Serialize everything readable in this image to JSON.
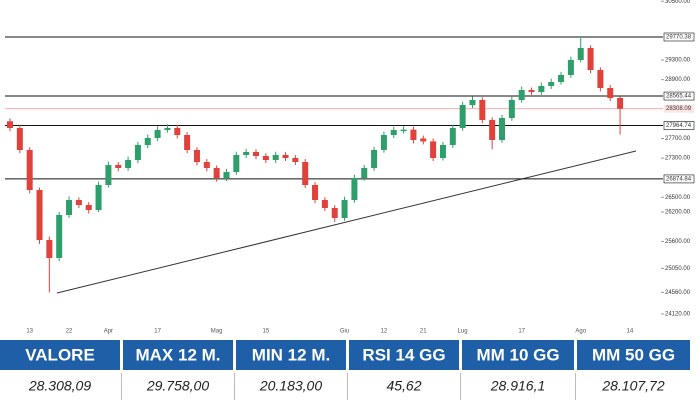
{
  "chart_data": {
    "type": "candlestick",
    "categories": [
      null,
      null,
      "13",
      null,
      null,
      null,
      "22",
      null,
      null,
      null,
      "Apr",
      null,
      null,
      null,
      null,
      "17",
      null,
      null,
      null,
      null,
      null,
      "Mag",
      null,
      null,
      null,
      null,
      "15",
      null,
      null,
      null,
      null,
      null,
      null,
      null,
      "Giu",
      null,
      null,
      null,
      "12",
      null,
      null,
      null,
      "21",
      null,
      null,
      null,
      "Lug",
      null,
      null,
      null,
      null,
      null,
      "17",
      null,
      null,
      null,
      null,
      null,
      "Ago",
      null,
      null,
      null,
      null,
      "14",
      null
    ],
    "open": [
      28050,
      27914,
      27465,
      26649,
      25629,
      25262,
      26139,
      26445,
      26343,
      26241,
      26751,
      27159,
      27098,
      27261,
      27567,
      27710,
      27873,
      27914,
      27771,
      27465,
      27220,
      27098,
      26893,
      27016,
      27363,
      27424,
      27343,
      27261,
      27363,
      27302,
      27220,
      26751,
      26445,
      26282,
      26078,
      26445,
      26893,
      27098,
      27465,
      27771,
      27850,
      27880,
      27700,
      27640,
      27302,
      27567,
      27914,
      28383,
      28485,
      28077,
      27669,
      28118,
      28485,
      28689,
      28648,
      28771,
      28852,
      28995,
      29301,
      29546,
      29097,
      28730,
      28526,
      null,
      null
    ],
    "high": [
      28110,
      27980,
      27520,
      26700,
      25700,
      26200,
      26520,
      26500,
      26400,
      26820,
      27230,
      27220,
      27330,
      27630,
      27780,
      27950,
      27990,
      27980,
      27830,
      27520,
      27280,
      27150,
      27080,
      27430,
      27490,
      27480,
      27400,
      27430,
      27420,
      27360,
      27280,
      26810,
      26500,
      26340,
      26510,
      26960,
      27160,
      27530,
      27840,
      27940,
      27950,
      27940,
      27760,
      27700,
      27630,
      27980,
      28450,
      28560,
      28540,
      28130,
      28180,
      28550,
      28760,
      28740,
      28840,
      28920,
      29060,
      29370,
      29770,
      29600,
      29150,
      28790,
      28560,
      null,
      null
    ],
    "low": [
      27850,
      27400,
      26580,
      25550,
      24560,
      25200,
      26080,
      26280,
      26170,
      26200,
      26700,
      27030,
      27040,
      27200,
      27500,
      27650,
      27820,
      27700,
      27400,
      27150,
      27030,
      26820,
      26830,
      26960,
      27300,
      27280,
      27200,
      27200,
      27240,
      27160,
      26690,
      26380,
      26220,
      26000,
      26020,
      26390,
      26840,
      27040,
      27410,
      27710,
      27800,
      27600,
      27580,
      27240,
      27250,
      27510,
      27860,
      28320,
      28010,
      27480,
      27610,
      28060,
      28430,
      28590,
      28590,
      28710,
      28800,
      28940,
      29250,
      29030,
      28660,
      28460,
      27780,
      null,
      null
    ],
    "close": [
      27914,
      27465,
      26649,
      25629,
      25262,
      26139,
      26445,
      26343,
      26241,
      26751,
      27159,
      27098,
      27261,
      27567,
      27710,
      27873,
      27914,
      27771,
      27465,
      27220,
      27098,
      26893,
      27016,
      27363,
      27424,
      27343,
      27261,
      27363,
      27302,
      27220,
      26751,
      26445,
      26282,
      26078,
      26445,
      26893,
      27098,
      27465,
      27771,
      27873,
      27880,
      27669,
      27640,
      27302,
      27567,
      27914,
      28383,
      28485,
      28077,
      27669,
      28118,
      28485,
      28689,
      28648,
      28771,
      28852,
      28995,
      29301,
      29546,
      29097,
      28730,
      28526,
      28308,
      null,
      null
    ],
    "up_color": "#2e9e6a",
    "down_color": "#e0413a",
    "ylim": [
      23956,
      30525
    ],
    "yticks": [
      {
        "value": 30500,
        "label": "30500.00"
      },
      {
        "value": 29300,
        "label": "29300.00"
      },
      {
        "value": 28900,
        "label": "28900.00"
      },
      {
        "value": 27700,
        "label": "27700.00"
      },
      {
        "value": 27300,
        "label": "27300.00"
      },
      {
        "value": 26500,
        "label": "26500.00"
      },
      {
        "value": 26200,
        "label": "26200.00"
      },
      {
        "value": 25600,
        "label": "25600.00"
      },
      {
        "value": 25050,
        "label": "25050.00"
      },
      {
        "value": 24560,
        "label": "24560.00"
      },
      {
        "value": 24120,
        "label": "24120.00"
      }
    ],
    "price_lines": [
      29770.38,
      28565.44,
      27964.74,
      26874.84
    ],
    "last_price": 28308.09
  },
  "table": {
    "header": [
      "VALORE",
      "MAX 12 M.",
      "MIN 12 M.",
      "RSI 14 GG",
      "MM 10 GG",
      "MM 50 GG"
    ],
    "rows": [
      [
        "28.308,09",
        "29.758,00",
        "20.183,00",
        "45,62",
        "28.916,1",
        "28.107,72"
      ]
    ]
  }
}
